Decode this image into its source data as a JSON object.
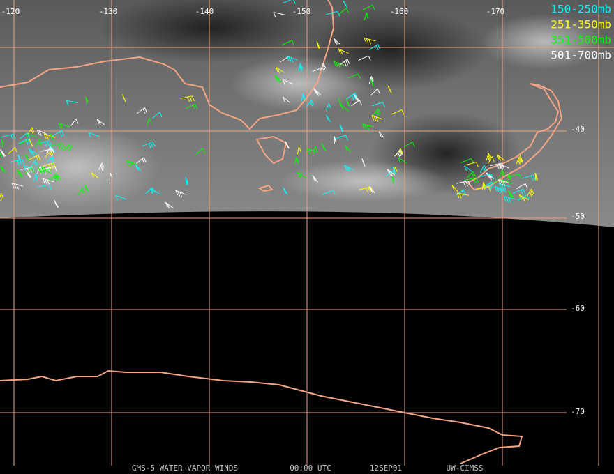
{
  "map": {
    "longitude_labels": [
      "-120",
      "-130",
      "-140",
      "-150",
      "-160",
      "-170"
    ],
    "latitude_labels": [
      "-40",
      "-50",
      "-60",
      "-70"
    ],
    "legend": [
      {
        "label": "150-250mb",
        "color": "#00ffff"
      },
      {
        "label": "251-350mb",
        "color": "#ffff00"
      },
      {
        "label": "351-500mb",
        "color": "#00ff00"
      },
      {
        "label": "501-700mb",
        "color": "#ffffff"
      }
    ],
    "footer": [
      "GMS-5 WATER VAPOR WINDS",
      "00:00 UTC",
      "12SEP01",
      "UW-CIMSS"
    ]
  }
}
